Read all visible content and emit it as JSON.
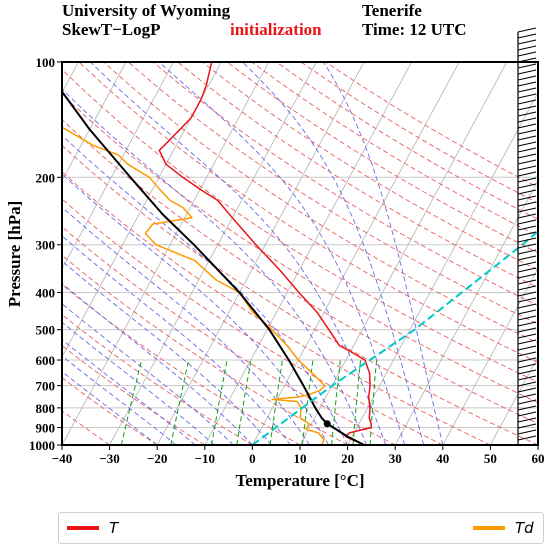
{
  "header": {
    "line1_left": "University of Wyoming",
    "line1_right": "Tenerife",
    "line2_left": "SkewT−LogP",
    "line2_center": "initialization",
    "line2_right": "Time: 12 UTC"
  },
  "legend": {
    "items": [
      {
        "label": "T",
        "color": "#e8141a"
      },
      {
        "label": "Td",
        "color": "#ff9900"
      }
    ]
  },
  "chart_data": {
    "type": "line",
    "chart_kind": "skew-t log-p",
    "xlabel": "Temperature [°C]",
    "ylabel": "Pressure [hPa]",
    "xlim": [
      -40,
      60
    ],
    "ylim": [
      1000,
      100
    ],
    "yscale": "log",
    "x_ticks": [
      -40,
      -30,
      -20,
      -10,
      0,
      10,
      20,
      30,
      40,
      50,
      60
    ],
    "y_ticks": [
      1000,
      900,
      800,
      700,
      600,
      500,
      400,
      300,
      200,
      100
    ],
    "grid": true,
    "legend_position": "bottom",
    "series": [
      {
        "name": "T",
        "color": "#e8141a",
        "points": [
          {
            "p": 1000,
            "t": 23.5
          },
          {
            "p": 970,
            "t": 20.5
          },
          {
            "p": 950,
            "t": 18.6
          },
          {
            "p": 930,
            "t": 19.0
          },
          {
            "p": 900,
            "t": 23.0
          },
          {
            "p": 880,
            "t": 22.5
          },
          {
            "p": 850,
            "t": 21.5
          },
          {
            "p": 800,
            "t": 20.5
          },
          {
            "p": 750,
            "t": 19.0
          },
          {
            "p": 700,
            "t": 18.0
          },
          {
            "p": 650,
            "t": 16.5
          },
          {
            "p": 600,
            "t": 14.0
          },
          {
            "p": 570,
            "t": 10.0
          },
          {
            "p": 550,
            "t": 7.0
          },
          {
            "p": 500,
            "t": 3.0
          },
          {
            "p": 450,
            "t": -1.5
          },
          {
            "p": 400,
            "t": -7.5
          },
          {
            "p": 350,
            "t": -14.0
          },
          {
            "p": 300,
            "t": -22.0
          },
          {
            "p": 250,
            "t": -31.0
          },
          {
            "p": 230,
            "t": -35.0
          },
          {
            "p": 215,
            "t": -40.0
          },
          {
            "p": 200,
            "t": -45.0
          },
          {
            "p": 185,
            "t": -50.0
          },
          {
            "p": 170,
            "t": -53.0
          },
          {
            "p": 160,
            "t": -52.0
          },
          {
            "p": 140,
            "t": -50.0
          },
          {
            "p": 125,
            "t": -50.0
          },
          {
            "p": 115,
            "t": -50.5
          },
          {
            "p": 100,
            "t": -52.0
          }
        ]
      },
      {
        "name": "Td",
        "color": "#ff9900",
        "points": [
          {
            "p": 1000,
            "t": 14.5
          },
          {
            "p": 970,
            "t": 14.5
          },
          {
            "p": 950,
            "t": 13.5
          },
          {
            "p": 930,
            "t": 12.5
          },
          {
            "p": 910,
            "t": 9.5
          },
          {
            "p": 880,
            "t": 9.5
          },
          {
            "p": 850,
            "t": 7.0
          },
          {
            "p": 800,
            "t": 6.0
          },
          {
            "p": 770,
            "t": 4.5
          },
          {
            "p": 760,
            "t": -1.0
          },
          {
            "p": 750,
            "t": 4.0
          },
          {
            "p": 740,
            "t": 6.0
          },
          {
            "p": 720,
            "t": 8.0
          },
          {
            "p": 700,
            "t": 8.5
          },
          {
            "p": 650,
            "t": 4.5
          },
          {
            "p": 600,
            "t": 0.0
          },
          {
            "p": 550,
            "t": -4.0
          },
          {
            "p": 500,
            "t": -9.0
          },
          {
            "p": 450,
            "t": -15.0
          },
          {
            "p": 400,
            "t": -20.0
          },
          {
            "p": 370,
            "t": -26.5
          },
          {
            "p": 330,
            "t": -33.0
          },
          {
            "p": 300,
            "t": -43.0
          },
          {
            "p": 280,
            "t": -46.5
          },
          {
            "p": 265,
            "t": -46.0
          },
          {
            "p": 255,
            "t": -38.5
          },
          {
            "p": 240,
            "t": -41.5
          },
          {
            "p": 230,
            "t": -45.0
          },
          {
            "p": 215,
            "t": -48.5
          },
          {
            "p": 200,
            "t": -52.0
          },
          {
            "p": 185,
            "t": -58.0
          },
          {
            "p": 175,
            "t": -61.0
          },
          {
            "p": 165,
            "t": -67.5
          },
          {
            "p": 150,
            "t": -75.0
          },
          {
            "p": 140,
            "t": -81.0
          },
          {
            "p": 130,
            "t": -85.0
          },
          {
            "p": 125,
            "t": -84.5
          },
          {
            "p": 115,
            "t": -85.0
          },
          {
            "p": 100,
            "t": -88.0
          }
        ]
      },
      {
        "name": "parcel",
        "color": "#000000",
        "points": [
          {
            "p": 1000,
            "t": 23.5
          },
          {
            "p": 950,
            "t": 19.0
          },
          {
            "p": 900,
            "t": 15.0
          },
          {
            "p": 880,
            "t": 13.3
          },
          {
            "p": 850,
            "t": 11.5
          },
          {
            "p": 800,
            "t": 9.0
          },
          {
            "p": 700,
            "t": 4.0
          },
          {
            "p": 600,
            "t": -2.0
          },
          {
            "p": 500,
            "t": -9.5
          },
          {
            "p": 400,
            "t": -20.0
          },
          {
            "p": 300,
            "t": -35.0
          },
          {
            "p": 250,
            "t": -45.0
          },
          {
            "p": 200,
            "t": -56.0
          },
          {
            "p": 150,
            "t": -70.0
          },
          {
            "p": 100,
            "t": -88.0
          }
        ]
      },
      {
        "name": "cyan-line",
        "color": "#00c8c8",
        "points": [
          {
            "p": 1000,
            "t": 0.0
          },
          {
            "p": 700,
            "t": 10.0
          },
          {
            "p": 500,
            "t": 21.0
          },
          {
            "p": 300,
            "t": 34.0
          },
          {
            "p": 200,
            "t": 43.0
          }
        ]
      }
    ],
    "lcl": {
      "p": 880,
      "t": 13.3
    }
  }
}
